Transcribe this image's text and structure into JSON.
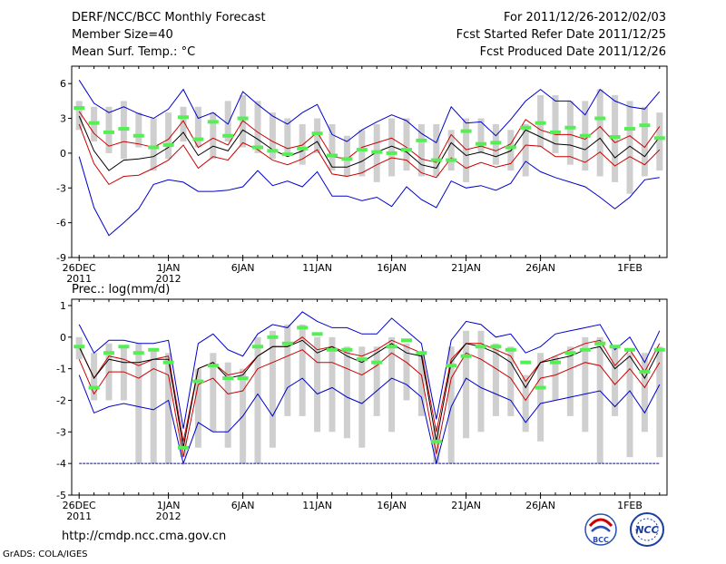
{
  "header": {
    "left": [
      "DERF/NCC/BCC Monthly Forecast",
      "Member Size=40",
      "Mean Surf. Temp.: °C"
    ],
    "right": [
      "For 2011/12/26-2012/02/03",
      "Fcst Started Refer Date 2011/12/25",
      "Fcst Produced Date 2011/12/26"
    ]
  },
  "footer": {
    "url": "http://cmdp.ncc.cma.gov.cn",
    "credit": "GrADS: COLA/IGES",
    "logo_bcc": "BCC",
    "logo_ncc": "NCC"
  },
  "colors": {
    "max_line": "#0000cc",
    "min_line": "#0000cc",
    "mean_line": "#000000",
    "spread_line": "#cc0000",
    "ensemble_bar": "#cfcfcf",
    "obs_marker": "#55ee55",
    "floor_line": "#0000cc"
  },
  "chart_data": [
    {
      "type": "line",
      "panel": "temperature",
      "title": "Mean Surf. Temp.: °C",
      "ylim": [
        -9,
        7.5
      ],
      "yticks": [
        6,
        3,
        0,
        -3,
        -6,
        -9
      ],
      "xlim": [
        -0.5,
        39.5
      ],
      "x_day_index_start": 0,
      "x_ticks": [
        {
          "day": 0,
          "label": "26DEC",
          "sub": "2011"
        },
        {
          "day": 6,
          "label": "1JAN",
          "sub": "2012"
        },
        {
          "day": 11,
          "label": "6JAN",
          "sub": ""
        },
        {
          "day": 16,
          "label": "11JAN",
          "sub": ""
        },
        {
          "day": 21,
          "label": "16JAN",
          "sub": ""
        },
        {
          "day": 26,
          "label": "21JAN",
          "sub": ""
        },
        {
          "day": 31,
          "label": "26JAN",
          "sub": ""
        },
        {
          "day": 37,
          "label": "1FEB",
          "sub": ""
        }
      ],
      "bars": {
        "low": [
          2.0,
          1.0,
          0.0,
          -0.5,
          0.5,
          -1.5,
          -0.5,
          1.0,
          0.5,
          -0.5,
          1.0,
          0.5,
          0.0,
          -0.5,
          0.0,
          -1.0,
          0.0,
          -1.5,
          -2.0,
          -2.0,
          -2.5,
          -2.0,
          -1.5,
          -2.0,
          -2.0,
          -1.5,
          -2.5,
          0.0,
          -1.0,
          -1.5,
          -2.0,
          0.5,
          0.0,
          -1.0,
          -1.5,
          -2.0,
          -2.5,
          -3.5,
          -2.0,
          -1.5
        ],
        "high": [
          4.5,
          4.0,
          4.0,
          4.5,
          3.5,
          3.0,
          3.5,
          4.0,
          4.0,
          3.5,
          4.5,
          5.0,
          4.5,
          3.5,
          3.0,
          2.5,
          3.0,
          2.5,
          1.5,
          2.0,
          2.5,
          3.0,
          3.0,
          2.5,
          2.5,
          2.0,
          3.0,
          3.0,
          2.5,
          2.0,
          2.5,
          5.0,
          5.0,
          4.5,
          4.5,
          5.5,
          5.0,
          4.5,
          4.0,
          3.5
        ]
      },
      "series": [
        {
          "name": "max",
          "role": "max",
          "values": [
            6.3,
            4.3,
            3.5,
            4.0,
            3.4,
            3.0,
            3.8,
            5.5,
            3.0,
            3.5,
            2.5,
            5.3,
            4.2,
            3.2,
            2.5,
            3.5,
            4.2,
            1.6,
            1.0,
            2.0,
            2.7,
            3.3,
            2.8,
            1.7,
            0.9,
            4.0,
            2.6,
            2.7,
            1.5,
            2.9,
            4.5,
            5.5,
            4.5,
            4.5,
            3.3,
            5.5,
            4.5,
            4.0,
            3.8,
            5.3
          ]
        },
        {
          "name": "spread_upper",
          "role": "spread",
          "values": [
            3.6,
            1.7,
            0.6,
            1.0,
            0.8,
            0.5,
            1.2,
            2.8,
            0.5,
            1.3,
            0.7,
            2.8,
            1.8,
            1.0,
            0.4,
            0.7,
            1.8,
            -0.3,
            -0.5,
            0.5,
            0.9,
            1.3,
            0.5,
            -0.5,
            -0.8,
            1.6,
            0.3,
            0.6,
            0.2,
            0.8,
            2.9,
            2.0,
            1.6,
            1.6,
            1.2,
            2.3,
            0.9,
            1.5,
            0.5,
            2.3
          ]
        },
        {
          "name": "mean",
          "role": "mean",
          "values": [
            3.2,
            0.2,
            -1.5,
            -0.6,
            -0.5,
            -0.3,
            0.5,
            1.8,
            -0.2,
            0.6,
            0.2,
            2.0,
            1.2,
            0.3,
            -0.3,
            0.2,
            1.0,
            -1.2,
            -1.2,
            -0.7,
            0.1,
            0.6,
            0.1,
            -1.0,
            -1.3,
            0.9,
            -0.2,
            0.1,
            -0.3,
            0.2,
            2.0,
            1.4,
            0.8,
            0.7,
            0.3,
            1.3,
            -0.4,
            0.6,
            -0.3,
            1.4
          ]
        },
        {
          "name": "spread_lower",
          "role": "spread",
          "values": [
            2.5,
            -0.9,
            -2.7,
            -2.0,
            -1.9,
            -1.3,
            -0.6,
            0.7,
            -1.3,
            -0.3,
            -0.6,
            0.9,
            0.3,
            -0.6,
            -1.0,
            -0.5,
            0.3,
            -1.8,
            -2.0,
            -1.7,
            -1.0,
            -0.4,
            -0.6,
            -1.7,
            -2.1,
            -0.4,
            -1.3,
            -0.8,
            -1.2,
            -0.9,
            0.7,
            0.6,
            -0.3,
            -0.3,
            -0.8,
            0.1,
            -1.1,
            -0.3,
            -1.0,
            0.3
          ]
        },
        {
          "name": "min",
          "role": "min",
          "values": [
            -0.3,
            -4.7,
            -7.1,
            -6.0,
            -4.8,
            -2.7,
            -2.3,
            -2.5,
            -3.3,
            -3.3,
            -3.2,
            -2.9,
            -1.5,
            -2.8,
            -2.4,
            -2.9,
            -1.6,
            -3.7,
            -3.7,
            -4.1,
            -3.8,
            -4.6,
            -2.9,
            -4.0,
            -4.7,
            -2.4,
            -3.0,
            -2.8,
            -3.2,
            -2.6,
            -0.7,
            -1.6,
            -2.1,
            -2.5,
            -2.9,
            -3.8,
            -4.8,
            -3.8,
            -2.3,
            -2.1
          ]
        }
      ],
      "obs": [
        3.9,
        2.6,
        1.8,
        2.1,
        1.5,
        0.5,
        0.7,
        3.1,
        1.2,
        2.7,
        1.5,
        3.0,
        0.5,
        0.2,
        -0.1,
        0.4,
        1.7,
        -0.2,
        -0.5,
        0.3,
        0.1,
        0.0,
        0.3,
        1.1,
        -0.6,
        -0.6,
        1.9,
        0.8,
        0.9,
        0.5,
        2.2,
        2.6,
        1.8,
        2.2,
        1.5,
        3.0,
        1.4,
        2.1,
        2.4,
        1.3
      ]
    },
    {
      "type": "line",
      "panel": "precipitation",
      "title": "Prec.: log(mm/d)",
      "ylim": [
        -5,
        1.2
      ],
      "yticks": [
        1,
        0,
        -1,
        -2,
        -3,
        -4,
        -5
      ],
      "xlim": [
        -0.5,
        39.5
      ],
      "x_ticks": [
        {
          "day": 0,
          "label": "26DEC",
          "sub": "2011"
        },
        {
          "day": 6,
          "label": "1JAN",
          "sub": "2012"
        },
        {
          "day": 11,
          "label": "6JAN",
          "sub": ""
        },
        {
          "day": 16,
          "label": "11JAN",
          "sub": ""
        },
        {
          "day": 21,
          "label": "16JAN",
          "sub": ""
        },
        {
          "day": 26,
          "label": "21JAN",
          "sub": ""
        },
        {
          "day": 31,
          "label": "26JAN",
          "sub": ""
        },
        {
          "day": 37,
          "label": "1FEB",
          "sub": ""
        }
      ],
      "floor": -4,
      "bars": {
        "low": [
          -0.7,
          -2.0,
          -2.0,
          -2.0,
          -4.0,
          -4.0,
          -4.0,
          -3.8,
          -3.5,
          -3.0,
          -3.5,
          -4.0,
          -4.0,
          -3.5,
          -2.5,
          -2.5,
          -3.0,
          -3.0,
          -3.2,
          -3.5,
          -2.5,
          -3.0,
          -2.0,
          -2.5,
          -4.0,
          -4.0,
          -3.2,
          -3.0,
          -2.5,
          -2.5,
          -3.0,
          -3.3,
          -2.0,
          -2.5,
          -3.0,
          -4.0,
          -2.5,
          -3.8,
          -3.0,
          -3.8
        ],
        "high": [
          0.0,
          -0.5,
          -0.2,
          -0.3,
          -0.2,
          -0.4,
          -0.5,
          -3.2,
          -1.0,
          -0.5,
          -0.8,
          -1.0,
          0.0,
          0.2,
          0.4,
          0.4,
          0.0,
          0.0,
          -0.3,
          -0.3,
          -0.3,
          0.0,
          -0.2,
          -0.5,
          -2.8,
          -0.3,
          0.2,
          0.2,
          -0.2,
          -0.3,
          -1.2,
          -0.5,
          -0.6,
          -0.3,
          0.0,
          0.0,
          -0.3,
          -0.5,
          -0.5,
          -0.3
        ]
      },
      "series": [
        {
          "name": "max",
          "role": "max",
          "values": [
            0.4,
            -0.5,
            -0.1,
            -0.1,
            -0.2,
            -0.2,
            -0.1,
            -2.9,
            -0.2,
            0.1,
            -0.4,
            -0.6,
            0.1,
            0.4,
            0.3,
            0.8,
            0.5,
            0.3,
            0.3,
            0.1,
            0.1,
            0.6,
            0.2,
            -0.2,
            -2.6,
            -0.1,
            0.5,
            0.4,
            0.0,
            0.1,
            -0.5,
            -0.3,
            0.1,
            0.2,
            0.3,
            0.4,
            -0.4,
            0.0,
            -0.8,
            0.2
          ]
        },
        {
          "name": "spread_upper",
          "role": "spread",
          "values": [
            -0.3,
            -1.3,
            -0.6,
            -0.7,
            -0.9,
            -0.7,
            -0.6,
            -3.3,
            -1.0,
            -0.8,
            -1.2,
            -1.1,
            -0.6,
            -0.3,
            -0.3,
            0.0,
            -0.4,
            -0.3,
            -0.5,
            -0.6,
            -0.4,
            -0.1,
            -0.3,
            -0.5,
            -3.0,
            -0.7,
            -0.2,
            -0.2,
            -0.4,
            -0.6,
            -1.4,
            -0.8,
            -0.6,
            -0.4,
            -0.2,
            -0.1,
            -0.9,
            -0.4,
            -1.1,
            -0.2
          ]
        },
        {
          "name": "mean",
          "role": "mean",
          "values": [
            -0.3,
            -1.3,
            -0.7,
            -0.8,
            -0.8,
            -0.7,
            -0.7,
            -3.5,
            -1.0,
            -0.8,
            -1.3,
            -1.2,
            -0.6,
            -0.3,
            -0.3,
            -0.1,
            -0.5,
            -0.3,
            -0.6,
            -0.8,
            -0.5,
            -0.2,
            -0.5,
            -0.6,
            -3.3,
            -0.8,
            -0.2,
            -0.3,
            -0.5,
            -0.8,
            -1.6,
            -0.8,
            -0.7,
            -0.6,
            -0.4,
            -0.3,
            -1.0,
            -0.6,
            -1.3,
            -0.4
          ]
        },
        {
          "name": "spread_lower",
          "role": "spread",
          "values": [
            -0.7,
            -1.8,
            -1.1,
            -1.1,
            -1.3,
            -1.0,
            -1.2,
            -3.8,
            -1.5,
            -1.3,
            -1.8,
            -1.7,
            -1.0,
            -0.8,
            -0.6,
            -0.4,
            -0.8,
            -0.8,
            -1.0,
            -1.2,
            -0.9,
            -0.5,
            -0.8,
            -1.2,
            -3.7,
            -1.3,
            -0.5,
            -0.7,
            -1.0,
            -1.3,
            -2.0,
            -1.3,
            -1.2,
            -1.0,
            -0.8,
            -0.9,
            -1.5,
            -1.0,
            -1.6,
            -0.8
          ]
        },
        {
          "name": "min",
          "role": "min",
          "values": [
            -1.2,
            -2.4,
            -2.2,
            -2.1,
            -2.2,
            -2.3,
            -2.0,
            -4.0,
            -2.7,
            -3.0,
            -3.0,
            -2.5,
            -1.8,
            -2.5,
            -1.6,
            -1.3,
            -1.8,
            -1.6,
            -1.9,
            -2.1,
            -1.7,
            -1.3,
            -1.5,
            -1.9,
            -4.0,
            -2.2,
            -1.3,
            -1.6,
            -1.8,
            -2.0,
            -2.7,
            -2.1,
            -2.0,
            -1.9,
            -1.8,
            -1.7,
            -2.2,
            -1.7,
            -2.4,
            -1.5
          ]
        }
      ],
      "obs": [
        -0.3,
        -1.6,
        -0.5,
        -0.3,
        -0.5,
        -0.4,
        -0.8,
        -3.5,
        -1.4,
        -0.9,
        -1.3,
        -1.3,
        -0.3,
        0.0,
        -0.2,
        0.3,
        0.1,
        -0.4,
        -0.4,
        -0.7,
        -0.8,
        -0.3,
        -0.1,
        -0.5,
        -3.3,
        -0.9,
        -0.6,
        -0.3,
        -0.3,
        -0.4,
        -0.8,
        -1.6,
        -0.8,
        -0.5,
        -0.4,
        -0.2,
        -0.3,
        -0.4,
        -1.1,
        -0.4
      ]
    }
  ]
}
